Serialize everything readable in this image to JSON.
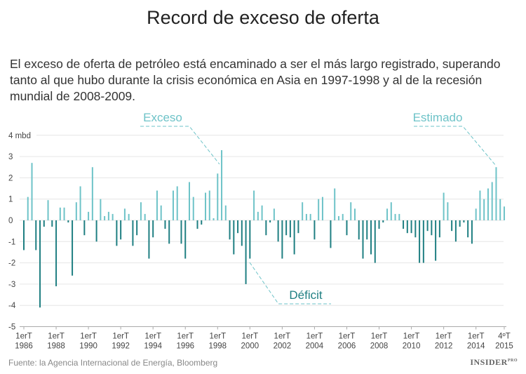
{
  "header": {
    "title": "Record de exceso de oferta",
    "subtitle": "El exceso de oferta de petróleo está encaminado a ser el más largo registrado, superando tanto al que hubo durante la crisis económica en Asia en 1997-1998 y al de la recesión mundial de 2008-2009."
  },
  "footer": {
    "source": "Fuente: la Agencia Internacional de Energía, Bloomberg",
    "logo": "INSIDER PRO"
  },
  "colors": {
    "surplus": "#6ec3c8",
    "deficit": "#1f7f82",
    "grid": "#e6e6e6",
    "annotation_surplus": "#6ec3c8",
    "annotation_deficit": "#1f7f82"
  },
  "chart_data": {
    "type": "bar",
    "title": "Record de exceso de oferta",
    "ylabel": "mbd",
    "ylim": [
      -5,
      4
    ],
    "yticks": [
      4,
      3,
      2,
      1,
      0,
      -1,
      -2,
      -3,
      -4,
      -5
    ],
    "ytick_labels": [
      "4 mbd",
      "3",
      "2",
      "1",
      "0",
      "-1",
      "-2",
      "-3",
      "-4",
      "-5"
    ],
    "grid": true,
    "x_start": "1erT 1986",
    "x_end": "4ºT 2015",
    "xtick_labels": [
      [
        "1erT",
        "1986"
      ],
      [
        "1erT",
        "1988"
      ],
      [
        "1erT",
        "1990"
      ],
      [
        "1erT",
        "1992"
      ],
      [
        "1erT",
        "1994"
      ],
      [
        "1erT",
        "1996"
      ],
      [
        "1erT",
        "1998"
      ],
      [
        "1erT",
        "2000"
      ],
      [
        "1erT",
        "2002"
      ],
      [
        "1erT",
        "2004"
      ],
      [
        "1erT",
        "2006"
      ],
      [
        "1erT",
        "2008"
      ],
      [
        "1erT",
        "2010"
      ],
      [
        "1erT",
        "2012"
      ],
      [
        "1erT",
        "2014"
      ],
      [
        "4ºT",
        "2015"
      ]
    ],
    "series": [
      {
        "values_by_year": {
          "1986": [
            -1.4,
            1.1,
            2.7,
            -1.4
          ],
          "1987": [
            -4.1,
            -0.3,
            0.95,
            -0.3
          ],
          "1988": [
            -3.1,
            0.6,
            0.6,
            -0.1
          ],
          "1989": [
            -2.6,
            0.85,
            1.6,
            -0.7
          ],
          "1990": [
            0.4,
            2.5,
            -1.0,
            1.0
          ],
          "1991": [
            0.2,
            0.4,
            0.3,
            -1.2
          ],
          "1992": [
            -0.9,
            0.55,
            0.3,
            -1.2
          ],
          "1993": [
            -0.7,
            0.85,
            0.3,
            -1.8
          ],
          "1994": [
            -0.8,
            1.4,
            0.7,
            -0.4
          ],
          "1995": [
            -1.1,
            1.4,
            1.6,
            -1.1
          ],
          "1996": [
            -1.8,
            1.8,
            1.1,
            -0.4
          ],
          "1997": [
            -0.2,
            1.3,
            1.4,
            0.1
          ],
          "1998": [
            2.2,
            3.3,
            0.7,
            -0.9
          ],
          "1999": [
            -1.6,
            -0.6,
            -1.2,
            -3.0
          ],
          "2000": [
            -1.8,
            1.4,
            0.4,
            0.7
          ],
          "2001": [
            -0.7,
            -0.1,
            0.55,
            -1.0
          ],
          "2002": [
            -1.8,
            -0.7,
            -0.8,
            -1.6
          ],
          "2003": [
            -0.6,
            0.85,
            0.3,
            0.3
          ],
          "2004": [
            -0.9,
            1.0,
            1.1,
            0
          ],
          "2005": [
            -1.3,
            1.5,
            0.2,
            0.3
          ],
          "2006": [
            -0.7,
            0.85,
            0.55,
            -0.9
          ],
          "2007": [
            -1.8,
            -0.9,
            -1.6,
            -2.0
          ],
          "2008": [
            -0.4,
            -0.1,
            0.55,
            0.85
          ],
          "2009": [
            0.3,
            0.3,
            -0.4,
            -0.6
          ],
          "2010": [
            -0.6,
            -0.8,
            -2.0,
            -2.0
          ],
          "2011": [
            -0.5,
            -0.7,
            -1.9,
            -0.8
          ],
          "2012": [
            1.3,
            0.85,
            -0.5,
            -1.0
          ],
          "2013": [
            -0.3,
            -0.1,
            -0.8,
            -1.1
          ],
          "2014": [
            0.55,
            1.4,
            1.0,
            1.5
          ],
          "2015": [
            1.8,
            2.5,
            1.0,
            0.65
          ]
        }
      }
    ],
    "annotations": {
      "surplus": {
        "text": "Exceso",
        "points_to": "2ºT 1998"
      },
      "estimate": {
        "text": "Estimado",
        "points_to": "2ºT 2015"
      },
      "deficit": {
        "text": "Déficit",
        "points_to": "4ºT 1999"
      }
    }
  }
}
